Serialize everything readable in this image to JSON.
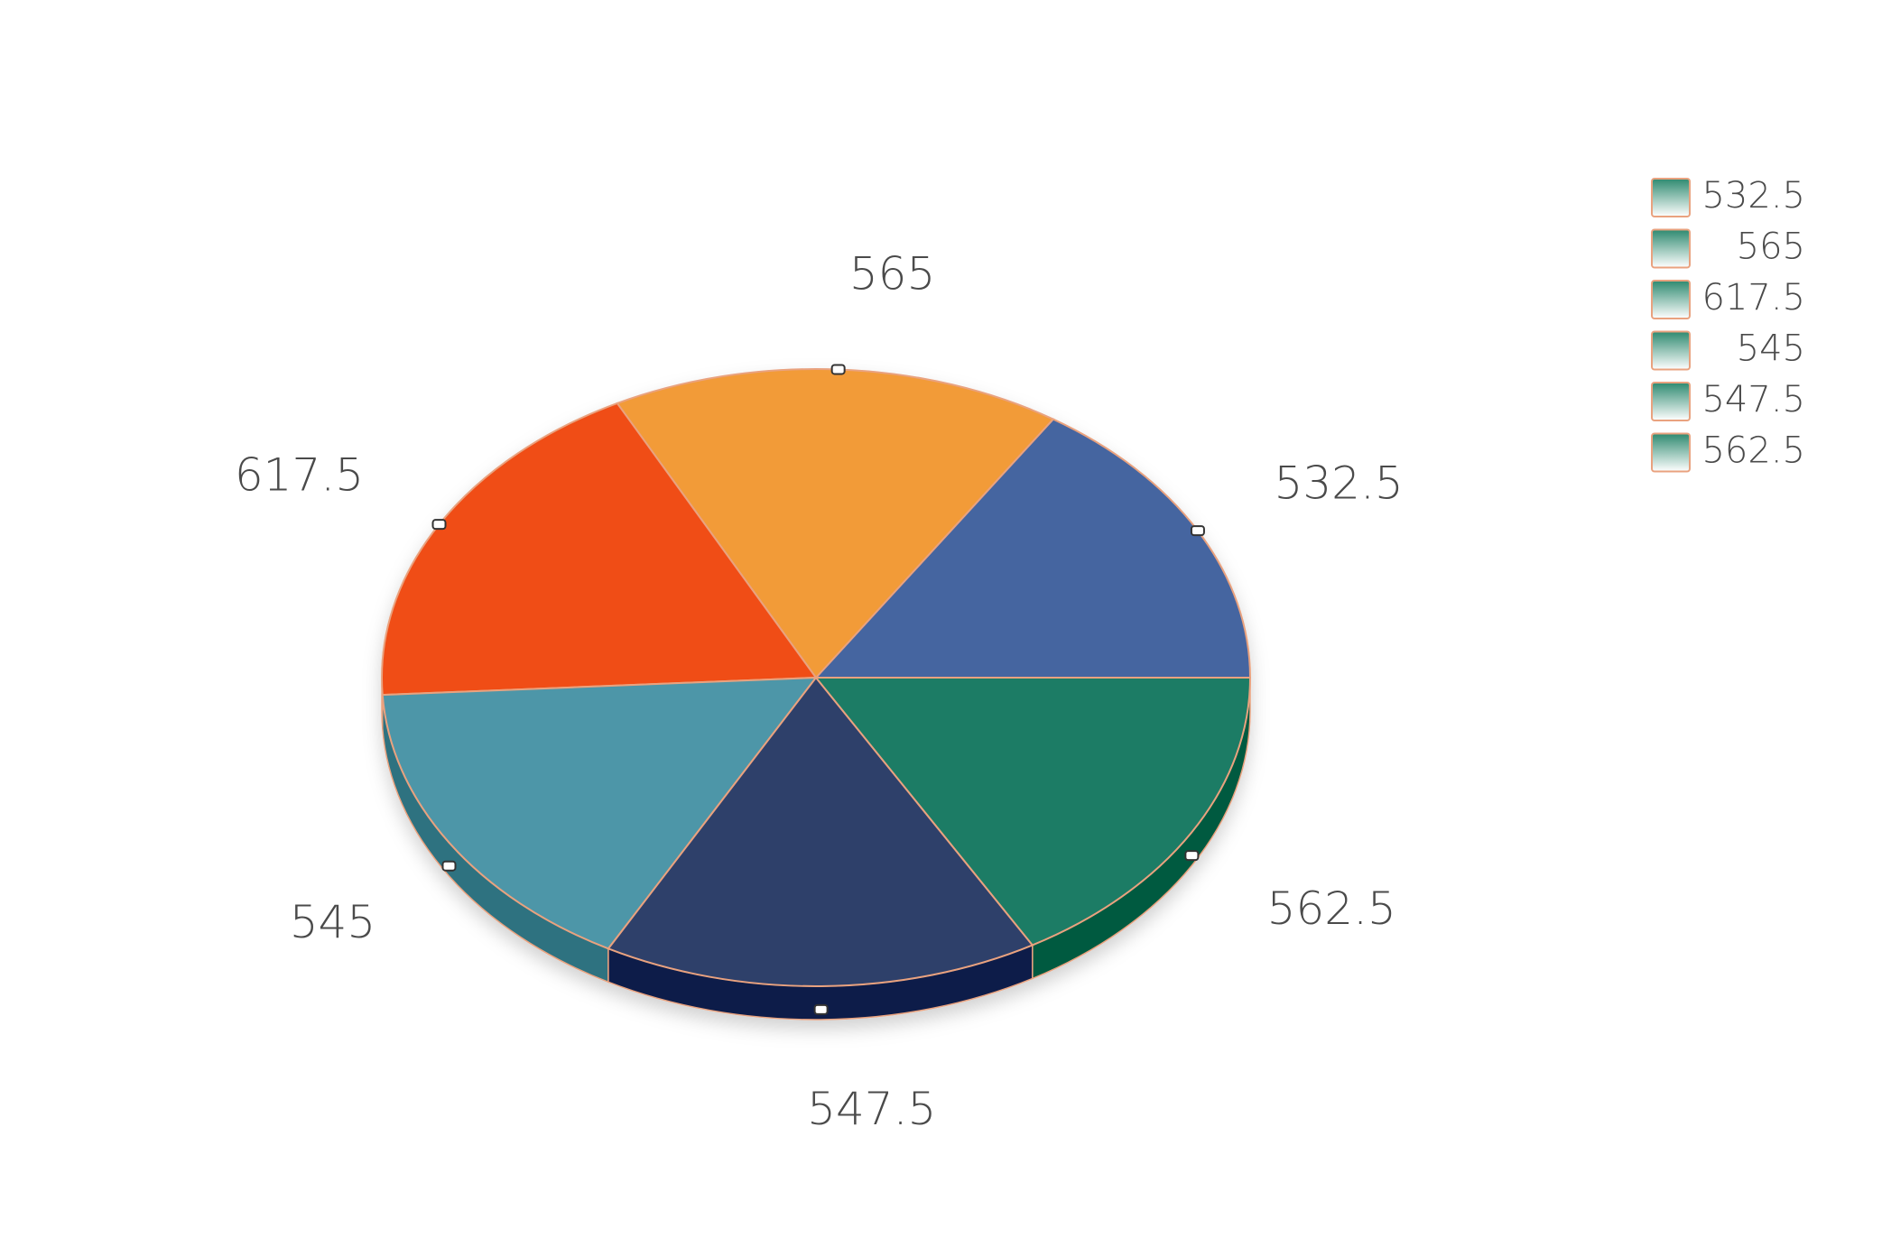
{
  "chart_data": {
    "type": "pie",
    "values": [
      532.5,
      565,
      617.5,
      545,
      547.5,
      562.5
    ],
    "colors": [
      "#4565a0",
      "#f29b38",
      "#f04e16",
      "#4e96a8",
      "#2e3f6b",
      "#1e7b65"
    ],
    "side_colors": [
      "#32507f",
      "#c07a2a",
      "#b83c10",
      "#2d7280",
      "#0e1f4a",
      "#005a40"
    ],
    "stroke": "#e9a27f",
    "legend": "right",
    "legend_color": "#2e8a70"
  }
}
